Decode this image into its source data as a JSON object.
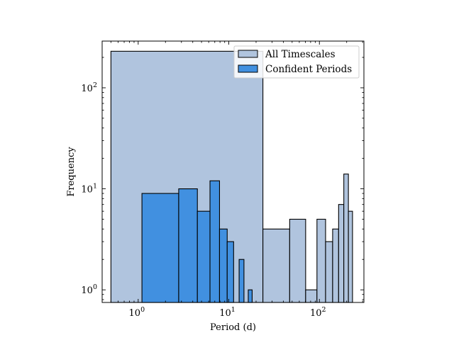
{
  "chart_data": {
    "type": "bar",
    "xlabel": "Period (d)",
    "ylabel": "Frequency",
    "xscale": "log",
    "yscale": "log",
    "xlim": [
      0.4,
      310
    ],
    "ylim": [
      0.75,
      290
    ],
    "x_ticks": [
      {
        "value": 1,
        "base": "10",
        "exp": "0"
      },
      {
        "value": 10,
        "base": "10",
        "exp": "1"
      },
      {
        "value": 100,
        "base": "10",
        "exp": "2"
      }
    ],
    "y_ticks": [
      {
        "value": 1,
        "base": "10",
        "exp": "0"
      },
      {
        "value": 10,
        "base": "10",
        "exp": "1"
      },
      {
        "value": 100,
        "base": "10",
        "exp": "2"
      }
    ],
    "legend_position": "top-right",
    "series": [
      {
        "name": "All Timescales",
        "color": "#b0c4de",
        "bins": [
          {
            "x0": 0.5,
            "x1": 23.8,
            "count": 230
          },
          {
            "x0": 23.8,
            "x1": 47.0,
            "count": 4
          },
          {
            "x0": 47.0,
            "x1": 70.5,
            "count": 5
          },
          {
            "x0": 70.5,
            "x1": 94.0,
            "count": 1
          },
          {
            "x0": 94.0,
            "x1": 117.0,
            "count": 5
          },
          {
            "x0": 117.0,
            "x1": 140.0,
            "count": 3
          },
          {
            "x0": 140.0,
            "x1": 163.0,
            "count": 4
          },
          {
            "x0": 163.0,
            "x1": 186.0,
            "count": 7
          },
          {
            "x0": 186.0,
            "x1": 209.0,
            "count": 14
          },
          {
            "x0": 209.0,
            "x1": 232.0,
            "count": 6
          }
        ]
      },
      {
        "name": "Confident Periods",
        "color": "#4190e0",
        "bins": [
          {
            "x0": 1.1,
            "x1": 2.8,
            "count": 9
          },
          {
            "x0": 2.8,
            "x1": 4.5,
            "count": 10
          },
          {
            "x0": 4.5,
            "x1": 6.2,
            "count": 6
          },
          {
            "x0": 6.2,
            "x1": 7.9,
            "count": 12
          },
          {
            "x0": 7.9,
            "x1": 9.6,
            "count": 4
          },
          {
            "x0": 9.6,
            "x1": 11.3,
            "count": 3
          },
          {
            "x0": 11.3,
            "x1": 13.0,
            "count": 0
          },
          {
            "x0": 13.0,
            "x1": 14.7,
            "count": 2
          },
          {
            "x0": 14.7,
            "x1": 16.4,
            "count": 0
          },
          {
            "x0": 16.4,
            "x1": 18.1,
            "count": 1
          }
        ]
      }
    ]
  }
}
